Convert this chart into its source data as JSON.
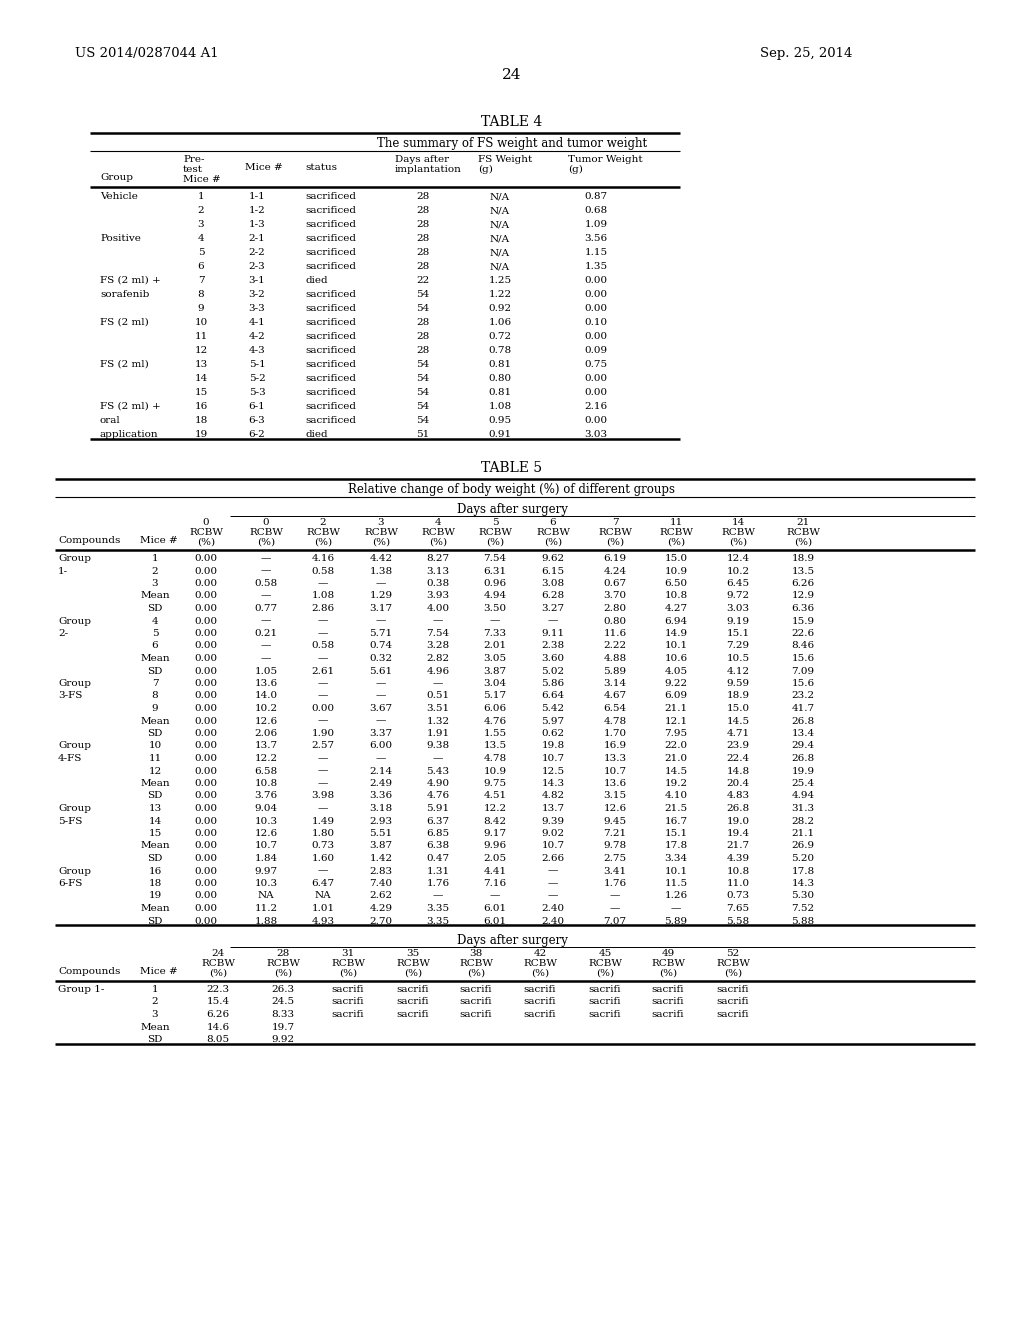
{
  "patent_number": "US 2014/0287044 A1",
  "date": "Sep. 25, 2014",
  "page_number": "24",
  "table4_title": "TABLE 4",
  "table4_subtitle": "The summary of FS weight and tumor weight",
  "table4_data": [
    [
      "Vehicle",
      "1",
      "1-1",
      "sacrificed",
      "28",
      "N/A",
      "0.87"
    ],
    [
      "",
      "2",
      "1-2",
      "sacrificed",
      "28",
      "N/A",
      "0.68"
    ],
    [
      "",
      "3",
      "1-3",
      "sacrificed",
      "28",
      "N/A",
      "1.09"
    ],
    [
      "Positive",
      "4",
      "2-1",
      "sacrificed",
      "28",
      "N/A",
      "3.56"
    ],
    [
      "",
      "5",
      "2-2",
      "sacrificed",
      "28",
      "N/A",
      "1.15"
    ],
    [
      "",
      "6",
      "2-3",
      "sacrificed",
      "28",
      "N/A",
      "1.35"
    ],
    [
      "FS (2 ml) +",
      "7",
      "3-1",
      "died",
      "22",
      "1.25",
      "0.00"
    ],
    [
      "sorafenib",
      "8",
      "3-2",
      "sacrificed",
      "54",
      "1.22",
      "0.00"
    ],
    [
      "",
      "9",
      "3-3",
      "sacrificed",
      "54",
      "0.92",
      "0.00"
    ],
    [
      "FS (2 ml)",
      "10",
      "4-1",
      "sacrificed",
      "28",
      "1.06",
      "0.10"
    ],
    [
      "",
      "11",
      "4-2",
      "sacrificed",
      "28",
      "0.72",
      "0.00"
    ],
    [
      "",
      "12",
      "4-3",
      "sacrificed",
      "28",
      "0.78",
      "0.09"
    ],
    [
      "FS (2 ml)",
      "13",
      "5-1",
      "sacrificed",
      "54",
      "0.81",
      "0.75"
    ],
    [
      "",
      "14",
      "5-2",
      "sacrificed",
      "54",
      "0.80",
      "0.00"
    ],
    [
      "",
      "15",
      "5-3",
      "sacrificed",
      "54",
      "0.81",
      "0.00"
    ],
    [
      "FS (2 ml) +",
      "16",
      "6-1",
      "sacrificed",
      "54",
      "1.08",
      "2.16"
    ],
    [
      "oral",
      "18",
      "6-3",
      "sacrificed",
      "54",
      "0.95",
      "0.00"
    ],
    [
      "application",
      "19",
      "6-2",
      "died",
      "51",
      "0.91",
      "3.03"
    ]
  ],
  "table5_title": "TABLE 5",
  "table5_subtitle": "Relative change of body weight (%) of different groups",
  "table5_header_days": "Days after surgery",
  "table5_data_part1": [
    [
      "Group",
      "1",
      "0.00",
      "—",
      "4.16",
      "4.42",
      "8.27",
      "7.54",
      "9.62",
      "6.19",
      "15.0",
      "12.4",
      "18.9"
    ],
    [
      "1-",
      "2",
      "0.00",
      "—",
      "0.58",
      "1.38",
      "3.13",
      "6.31",
      "6.15",
      "4.24",
      "10.9",
      "10.2",
      "13.5"
    ],
    [
      "",
      "3",
      "0.00",
      "0.58",
      "—",
      "—",
      "0.38",
      "0.96",
      "3.08",
      "0.67",
      "6.50",
      "6.45",
      "6.26"
    ],
    [
      "",
      "Mean",
      "0.00",
      "—",
      "1.08",
      "1.29",
      "3.93",
      "4.94",
      "6.28",
      "3.70",
      "10.8",
      "9.72",
      "12.9"
    ],
    [
      "",
      "SD",
      "0.00",
      "0.77",
      "2.86",
      "3.17",
      "4.00",
      "3.50",
      "3.27",
      "2.80",
      "4.27",
      "3.03",
      "6.36"
    ],
    [
      "Group",
      "4",
      "0.00",
      "—",
      "—",
      "—",
      "—",
      "—",
      "—",
      "0.80",
      "6.94",
      "9.19",
      "15.9"
    ],
    [
      "2-",
      "5",
      "0.00",
      "0.21",
      "—",
      "5.71",
      "7.54",
      "7.33",
      "9.11",
      "11.6",
      "14.9",
      "15.1",
      "22.6"
    ],
    [
      "",
      "6",
      "0.00",
      "—",
      "0.58",
      "0.74",
      "3.28",
      "2.01",
      "2.38",
      "2.22",
      "10.1",
      "7.29",
      "8.46"
    ],
    [
      "",
      "Mean",
      "0.00",
      "—",
      "—",
      "0.32",
      "2.82",
      "3.05",
      "3.60",
      "4.88",
      "10.6",
      "10.5",
      "15.6"
    ],
    [
      "",
      "SD",
      "0.00",
      "1.05",
      "2.61",
      "5.61",
      "4.96",
      "3.87",
      "5.02",
      "5.89",
      "4.05",
      "4.12",
      "7.09"
    ],
    [
      "Group",
      "7",
      "0.00",
      "13.6",
      "—",
      "—",
      "—",
      "3.04",
      "5.86",
      "3.14",
      "9.22",
      "9.59",
      "15.6"
    ],
    [
      "3-FS",
      "8",
      "0.00",
      "14.0",
      "—",
      "—",
      "0.51",
      "5.17",
      "6.64",
      "4.67",
      "6.09",
      "18.9",
      "23.2"
    ],
    [
      "",
      "9",
      "0.00",
      "10.2",
      "0.00",
      "3.67",
      "3.51",
      "6.06",
      "5.42",
      "6.54",
      "21.1",
      "15.0",
      "41.7"
    ],
    [
      "",
      "Mean",
      "0.00",
      "12.6",
      "—",
      "—",
      "1.32",
      "4.76",
      "5.97",
      "4.78",
      "12.1",
      "14.5",
      "26.8"
    ],
    [
      "",
      "SD",
      "0.00",
      "2.06",
      "1.90",
      "3.37",
      "1.91",
      "1.55",
      "0.62",
      "1.70",
      "7.95",
      "4.71",
      "13.4"
    ],
    [
      "Group",
      "10",
      "0.00",
      "13.7",
      "2.57",
      "6.00",
      "9.38",
      "13.5",
      "19.8",
      "16.9",
      "22.0",
      "23.9",
      "29.4"
    ],
    [
      "4-FS",
      "11",
      "0.00",
      "12.2",
      "—",
      "—",
      "—",
      "4.78",
      "10.7",
      "13.3",
      "21.0",
      "22.4",
      "26.8"
    ],
    [
      "",
      "12",
      "0.00",
      "6.58",
      "—",
      "2.14",
      "5.43",
      "10.9",
      "12.5",
      "10.7",
      "14.5",
      "14.8",
      "19.9"
    ],
    [
      "",
      "Mean",
      "0.00",
      "10.8",
      "—",
      "2.49",
      "4.90",
      "9.75",
      "14.3",
      "13.6",
      "19.2",
      "20.4",
      "25.4"
    ],
    [
      "",
      "SD",
      "0.00",
      "3.76",
      "3.98",
      "3.36",
      "4.76",
      "4.51",
      "4.82",
      "3.15",
      "4.10",
      "4.83",
      "4.94"
    ],
    [
      "Group",
      "13",
      "0.00",
      "9.04",
      "—",
      "3.18",
      "5.91",
      "12.2",
      "13.7",
      "12.6",
      "21.5",
      "26.8",
      "31.3"
    ],
    [
      "5-FS",
      "14",
      "0.00",
      "10.3",
      "1.49",
      "2.93",
      "6.37",
      "8.42",
      "9.39",
      "9.45",
      "16.7",
      "19.0",
      "28.2"
    ],
    [
      "",
      "15",
      "0.00",
      "12.6",
      "1.80",
      "5.51",
      "6.85",
      "9.17",
      "9.02",
      "7.21",
      "15.1",
      "19.4",
      "21.1"
    ],
    [
      "",
      "Mean",
      "0.00",
      "10.7",
      "0.73",
      "3.87",
      "6.38",
      "9.96",
      "10.7",
      "9.78",
      "17.8",
      "21.7",
      "26.9"
    ],
    [
      "",
      "SD",
      "0.00",
      "1.84",
      "1.60",
      "1.42",
      "0.47",
      "2.05",
      "2.66",
      "2.75",
      "3.34",
      "4.39",
      "5.20"
    ],
    [
      "Group",
      "16",
      "0.00",
      "9.97",
      "—",
      "2.83",
      "1.31",
      "4.41",
      "—",
      "3.41",
      "10.1",
      "10.8",
      "17.8"
    ],
    [
      "6-FS",
      "18",
      "0.00",
      "10.3",
      "6.47",
      "7.40",
      "1.76",
      "7.16",
      "—",
      "1.76",
      "11.5",
      "11.0",
      "14.3"
    ],
    [
      "",
      "19",
      "0.00",
      "NA",
      "NA",
      "2.62",
      "—",
      "—",
      "—",
      "—",
      "1.26",
      "0.73",
      "5.30"
    ],
    [
      "",
      "Mean",
      "0.00",
      "11.2",
      "1.01",
      "4.29",
      "3.35",
      "6.01",
      "2.40",
      "—",
      "—",
      "7.65",
      "7.52"
    ],
    [
      "",
      "SD",
      "0.00",
      "1.88",
      "4.93",
      "2.70",
      "3.35",
      "6.01",
      "2.40",
      "7.07",
      "5.89",
      "5.58",
      "5.88"
    ]
  ],
  "table5_data_part2": [
    [
      "Group 1-",
      "1",
      "22.3",
      "26.3",
      "sacrifi",
      "sacrifi",
      "sacrifi",
      "sacrifi",
      "sacrifi",
      "sacrifi",
      "sacrifi"
    ],
    [
      "",
      "2",
      "15.4",
      "24.5",
      "sacrifi",
      "sacrifi",
      "sacrifi",
      "sacrifi",
      "sacrifi",
      "sacrifi",
      "sacrifi"
    ],
    [
      "",
      "3",
      "6.26",
      "8.33",
      "sacrifi",
      "sacrifi",
      "sacrifi",
      "sacrifi",
      "sacrifi",
      "sacrifi",
      "sacrifi"
    ],
    [
      "",
      "Mean",
      "14.6",
      "19.7",
      "",
      "",
      "",
      "",
      "",
      "",
      ""
    ],
    [
      "",
      "SD",
      "8.05",
      "9.92",
      "",
      "",
      "",
      "",
      "",
      "",
      ""
    ]
  ],
  "background_color": "#ffffff",
  "text_color": "#000000",
  "font_size": 7.5
}
